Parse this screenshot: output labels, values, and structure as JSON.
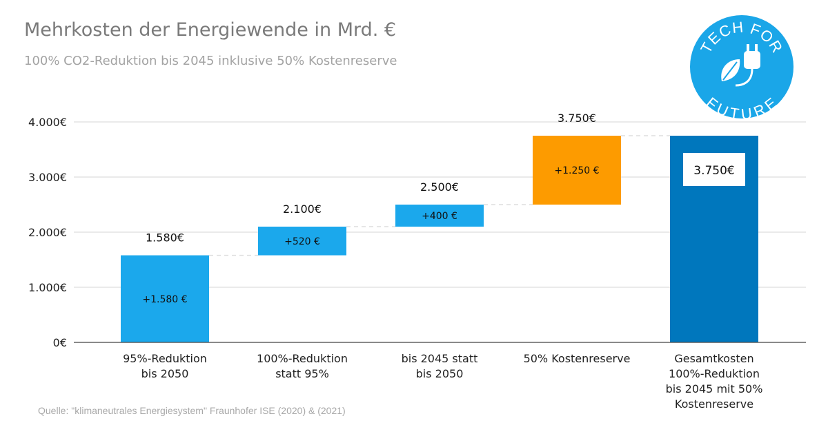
{
  "title": "Mehrkosten der Energiewende in Mrd. €",
  "subtitle": "100% CO2-Reduktion bis 2045 inklusive 50% Kostenreserve",
  "source": "Quelle: \"klimaneutrales Energiesystem\" Fraunhofer ISE (2020) & (2021)",
  "logo": {
    "text_top": "TECH FOR",
    "text_bottom": "FUTURE",
    "icon": "plug-leaf-icon",
    "color": "#1aa6e8"
  },
  "colors": {
    "increase": "#1ba8ec",
    "reserve": "#fd9b00",
    "total": "#0077bd",
    "grid": "#d6d6d6",
    "axis": "#444444"
  },
  "chart_data": {
    "type": "bar",
    "subtype": "waterfall",
    "y_tick_labels": [
      "0€",
      "1.000€",
      "2.000€",
      "3.000€",
      "4.000€"
    ],
    "y_ticks": [
      0,
      1000,
      2000,
      3000,
      4000
    ],
    "ylim": [
      0,
      4000
    ],
    "grid": true,
    "bars": [
      {
        "label": [
          "95%-Reduktion",
          "bis 2050"
        ],
        "start": 0,
        "end": 1580,
        "delta_label": "+1.580 €",
        "total_label": "1.580€",
        "kind": "increase"
      },
      {
        "label": [
          "100%-Reduktion",
          "statt 95%"
        ],
        "start": 1580,
        "end": 2100,
        "delta_label": "+520 €",
        "total_label": "2.100€",
        "kind": "increase"
      },
      {
        "label": [
          "bis 2045 statt",
          "bis 2050"
        ],
        "start": 2100,
        "end": 2500,
        "delta_label": "+400 €",
        "total_label": "2.500€",
        "kind": "increase"
      },
      {
        "label": [
          "50% Kostenreserve"
        ],
        "start": 2500,
        "end": 3750,
        "delta_label": "+1.250 €",
        "total_label": "3.750€",
        "kind": "reserve"
      },
      {
        "label": [
          "Gesamtkosten",
          "100%-Reduktion",
          "bis 2045 mit 50%",
          "Kostenreserve"
        ],
        "start": 0,
        "end": 3750,
        "delta_label": "3.750€",
        "total_label": "",
        "kind": "total"
      }
    ]
  }
}
